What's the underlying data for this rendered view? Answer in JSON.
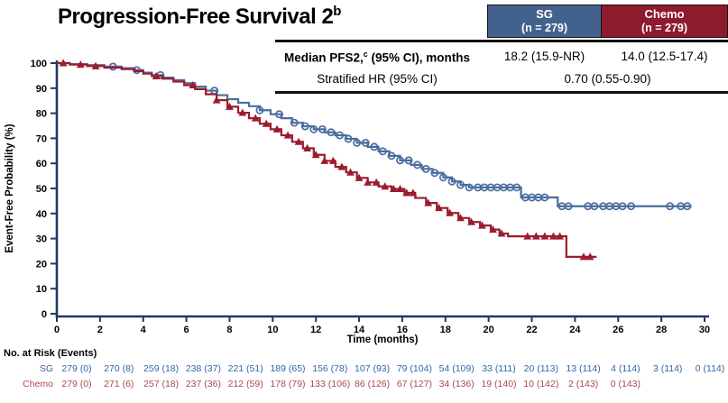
{
  "title": {
    "text": "Progression-Free Survival 2",
    "sup": "b"
  },
  "colors": {
    "sg_box": "#43618D",
    "chemo_box": "#8E1A2D",
    "sg_line": "#4A6D9E",
    "chemo_line": "#9C1B2E",
    "sg_risk_text": "#3465A8",
    "chemo_risk_text": "#AE4650",
    "axis": "#1F3864"
  },
  "arms_header": {
    "sg": {
      "name": "SG",
      "n": "(n = 279)"
    },
    "chemo": {
      "name": "Chemo",
      "n": "(n = 279)"
    }
  },
  "stats_table": {
    "row1": {
      "label_main": "Median PFS2,",
      "label_sup": "c",
      "label_rest": " (95% CI), months",
      "sg_value": "18.2 (15.9-NR)",
      "chemo_value": "14.0 (12.5-17.4)"
    },
    "row2": {
      "label": "Stratified HR (95% CI)",
      "combined_value": "0.70 (0.55-0.90)"
    }
  },
  "chart_data": {
    "type": "line",
    "subtype": "kaplan-meier-step",
    "title": "Progression-Free Survival 2",
    "xlabel": "Time (months)",
    "ylabel": "Event-Free Probability (%)",
    "xlim": [
      0,
      30
    ],
    "x_tick_step": 2,
    "ylim": [
      0,
      100
    ],
    "y_tick_step": 10,
    "grid": false,
    "legend_position": "none",
    "series": [
      {
        "name": "SG",
        "color": "#4A6D9E",
        "marker": "open-circle",
        "median_months": "18.2 (15.9-NR)",
        "end_time": 29.4,
        "steps": [
          [
            0,
            100
          ],
          [
            0.6,
            99.6
          ],
          [
            1.4,
            99.2
          ],
          [
            2.2,
            98.6
          ],
          [
            3.0,
            98.0
          ],
          [
            3.6,
            97.2
          ],
          [
            4.0,
            96.2
          ],
          [
            4.4,
            95.2
          ],
          [
            4.9,
            94.2
          ],
          [
            5.4,
            93.2
          ],
          [
            5.9,
            92.0
          ],
          [
            6.4,
            90.6
          ],
          [
            6.9,
            89.0
          ],
          [
            7.4,
            87.2
          ],
          [
            7.9,
            85.6
          ],
          [
            8.4,
            84.2
          ],
          [
            8.9,
            82.8
          ],
          [
            9.4,
            81.2
          ],
          [
            9.9,
            79.6
          ],
          [
            10.4,
            78.0
          ],
          [
            10.9,
            76.2
          ],
          [
            11.4,
            74.8
          ],
          [
            11.9,
            73.6
          ],
          [
            12.4,
            72.4
          ],
          [
            12.9,
            71.2
          ],
          [
            13.4,
            69.8
          ],
          [
            13.9,
            68.2
          ],
          [
            14.4,
            66.6
          ],
          [
            14.9,
            64.8
          ],
          [
            15.4,
            63.0
          ],
          [
            15.9,
            61.2
          ],
          [
            16.4,
            59.4
          ],
          [
            16.9,
            57.8
          ],
          [
            17.4,
            56.2
          ],
          [
            17.9,
            54.4
          ],
          [
            18.3,
            52.8
          ],
          [
            18.7,
            51.4
          ],
          [
            19.1,
            50.4
          ],
          [
            21.5,
            46.4
          ],
          [
            23.2,
            42.9
          ]
        ],
        "censor_times": [
          2.6,
          3.7,
          4.8,
          7.3,
          9.4,
          10.3,
          11.0,
          11.5,
          11.9,
          12.3,
          12.7,
          13.1,
          13.5,
          13.9,
          14.3,
          14.7,
          15.1,
          15.5,
          15.9,
          16.3,
          16.7,
          17.1,
          17.5,
          17.9,
          18.3,
          18.7,
          19.1,
          19.5,
          19.8,
          20.1,
          20.4,
          20.7,
          21.0,
          21.3,
          21.7,
          22.0,
          22.3,
          22.6,
          23.4,
          23.7,
          24.6,
          24.9,
          25.3,
          25.6,
          25.9,
          26.2,
          26.6,
          28.4,
          28.9,
          29.2
        ]
      },
      {
        "name": "Chemo",
        "color": "#9C1B2E",
        "marker": "filled-triangle",
        "median_months": "14.0 (12.5-17.4)",
        "end_time": 25.0,
        "steps": [
          [
            0,
            100
          ],
          [
            0.6,
            99.4
          ],
          [
            1.4,
            98.8
          ],
          [
            2.2,
            98.2
          ],
          [
            3.0,
            97.6
          ],
          [
            3.6,
            96.8
          ],
          [
            4.0,
            95.8
          ],
          [
            4.4,
            94.8
          ],
          [
            4.9,
            93.8
          ],
          [
            5.4,
            92.6
          ],
          [
            5.9,
            91.2
          ],
          [
            6.4,
            89.6
          ],
          [
            6.9,
            87.6
          ],
          [
            7.4,
            85.2
          ],
          [
            7.9,
            82.6
          ],
          [
            8.4,
            80.2
          ],
          [
            8.9,
            78.0
          ],
          [
            9.4,
            75.8
          ],
          [
            9.9,
            73.6
          ],
          [
            10.4,
            71.2
          ],
          [
            10.9,
            68.6
          ],
          [
            11.4,
            66.0
          ],
          [
            11.9,
            63.4
          ],
          [
            12.4,
            61.0
          ],
          [
            12.9,
            58.6
          ],
          [
            13.4,
            56.4
          ],
          [
            13.9,
            54.2
          ],
          [
            14.4,
            52.4
          ],
          [
            14.9,
            50.8
          ],
          [
            15.5,
            49.8
          ],
          [
            16.1,
            48.2
          ],
          [
            16.6,
            46.2
          ],
          [
            17.1,
            44.2
          ],
          [
            17.6,
            42.2
          ],
          [
            18.1,
            40.2
          ],
          [
            18.6,
            38.2
          ],
          [
            19.1,
            36.6
          ],
          [
            19.6,
            35.2
          ],
          [
            20.1,
            33.6
          ],
          [
            20.5,
            32.0
          ],
          [
            20.9,
            30.9
          ],
          [
            23.6,
            22.7
          ]
        ],
        "censor_times": [
          0.3,
          1.1,
          1.8,
          4.6,
          6.3,
          7.4,
          8.0,
          8.6,
          9.2,
          9.7,
          10.2,
          10.7,
          11.2,
          11.6,
          12.0,
          12.4,
          12.8,
          13.2,
          13.6,
          14.0,
          14.4,
          14.8,
          15.2,
          15.6,
          15.9,
          16.2,
          16.5,
          17.2,
          17.7,
          18.2,
          18.7,
          19.2,
          19.7,
          20.2,
          20.6,
          21.8,
          22.2,
          22.6,
          23.0,
          23.3,
          24.4,
          24.7
        ]
      }
    ]
  },
  "risk_table": {
    "title": "No. at Risk (Events)",
    "time_points": [
      0,
      2,
      4,
      6,
      8,
      10,
      12,
      14,
      16,
      18,
      20,
      22,
      24,
      26,
      28,
      30
    ],
    "rows": [
      {
        "label": "SG",
        "color": "#3465A8",
        "values": [
          "279 (0)",
          "270 (8)",
          "259 (18)",
          "238 (37)",
          "221 (51)",
          "189 (65)",
          "156 (78)",
          "107 (93)",
          "79 (104)",
          "54 (109)",
          "33 (111)",
          "20 (113)",
          "13 (114)",
          "4 (114)",
          "3 (114)",
          "0 (114)"
        ]
      },
      {
        "label": "Chemo",
        "color": "#AE4650",
        "values": [
          "279 (0)",
          "271 (6)",
          "257 (18)",
          "237 (36)",
          "212 (59)",
          "178 (79)",
          "133 (106)",
          "86 (126)",
          "67 (127)",
          "34 (136)",
          "19 (140)",
          "10 (142)",
          "2 (143)",
          "0 (143)"
        ]
      }
    ]
  }
}
